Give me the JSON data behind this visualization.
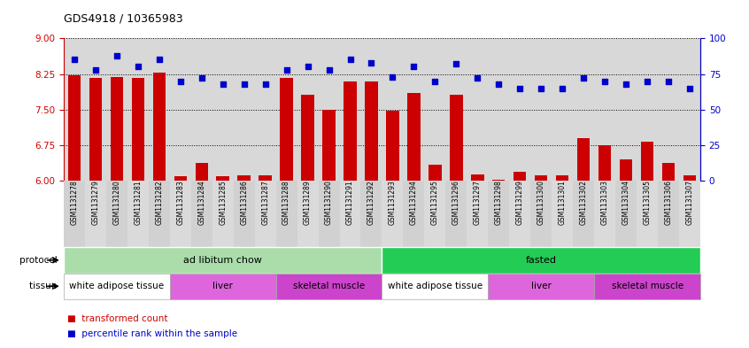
{
  "title": "GDS4918 / 10365983",
  "samples": [
    "GSM1131278",
    "GSM1131279",
    "GSM1131280",
    "GSM1131281",
    "GSM1131282",
    "GSM1131283",
    "GSM1131284",
    "GSM1131285",
    "GSM1131286",
    "GSM1131287",
    "GSM1131288",
    "GSM1131289",
    "GSM1131290",
    "GSM1131291",
    "GSM1131292",
    "GSM1131293",
    "GSM1131294",
    "GSM1131295",
    "GSM1131296",
    "GSM1131297",
    "GSM1131298",
    "GSM1131299",
    "GSM1131300",
    "GSM1131301",
    "GSM1131302",
    "GSM1131303",
    "GSM1131304",
    "GSM1131305",
    "GSM1131306",
    "GSM1131307"
  ],
  "bar_values": [
    8.22,
    8.17,
    8.18,
    8.17,
    8.27,
    6.1,
    6.37,
    6.1,
    6.12,
    6.12,
    8.17,
    7.82,
    7.5,
    8.1,
    8.1,
    7.47,
    7.85,
    6.35,
    7.82,
    6.14,
    6.03,
    6.2,
    6.12,
    6.12,
    6.9,
    6.75,
    6.45,
    6.82,
    6.38,
    6.12
  ],
  "blue_values": [
    85,
    78,
    88,
    80,
    85,
    70,
    72,
    68,
    68,
    68,
    78,
    80,
    78,
    85,
    83,
    73,
    80,
    70,
    82,
    72,
    68,
    65,
    65,
    65,
    72,
    70,
    68,
    70,
    70,
    65
  ],
  "ylim_left": [
    6.0,
    9.0
  ],
  "ylim_right": [
    0,
    100
  ],
  "yticks_left": [
    6.0,
    6.75,
    7.5,
    8.25,
    9.0
  ],
  "yticks_right": [
    0,
    25,
    50,
    75,
    100
  ],
  "bar_color": "#cc0000",
  "dot_color": "#0000cc",
  "bg_color": "#d8d8d8",
  "protocol_groups": [
    {
      "label": "ad libitum chow",
      "start": 0,
      "end": 15,
      "color": "#aaddaa"
    },
    {
      "label": "fasted",
      "start": 15,
      "end": 30,
      "color": "#22cc55"
    }
  ],
  "tissue_groups": [
    {
      "label": "white adipose tissue",
      "start": 0,
      "end": 5,
      "color": "#ffffff"
    },
    {
      "label": "liver",
      "start": 5,
      "end": 10,
      "color": "#dd66dd"
    },
    {
      "label": "skeletal muscle",
      "start": 10,
      "end": 15,
      "color": "#cc44cc"
    },
    {
      "label": "white adipose tissue",
      "start": 15,
      "end": 20,
      "color": "#ffffff"
    },
    {
      "label": "liver",
      "start": 20,
      "end": 25,
      "color": "#dd66dd"
    },
    {
      "label": "skeletal muscle",
      "start": 25,
      "end": 30,
      "color": "#cc44cc"
    }
  ]
}
